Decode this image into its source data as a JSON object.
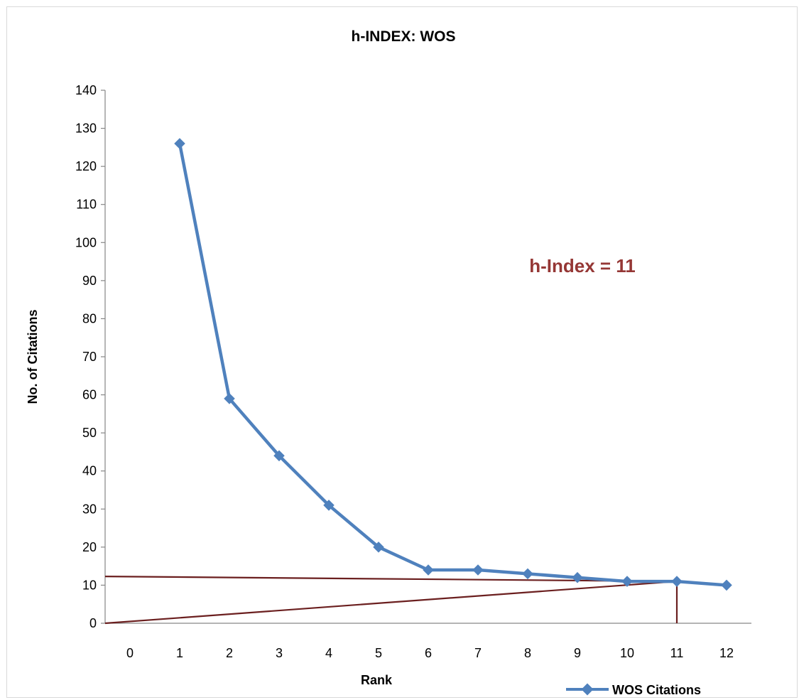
{
  "chart_data": {
    "type": "line",
    "title": "h-INDEX: WOS",
    "xlabel": "Rank",
    "ylabel": "No. of Citations",
    "categories": [
      "0",
      "1",
      "2",
      "3",
      "4",
      "5",
      "6",
      "7",
      "8",
      "9",
      "10",
      "11",
      "12"
    ],
    "yticks": [
      "0",
      "10",
      "20",
      "30",
      "40",
      "50",
      "60",
      "70",
      "80",
      "90",
      "100",
      "110",
      "120",
      "130",
      "140"
    ],
    "ylim": [
      0,
      140
    ],
    "series": [
      {
        "name": "WOS Citations",
        "color": "#4f81bd",
        "x": [
          1,
          2,
          3,
          4,
          5,
          6,
          7,
          8,
          9,
          10,
          11,
          12
        ],
        "values": [
          126,
          59,
          44,
          31,
          20,
          14,
          14,
          13,
          12,
          11,
          11,
          10
        ]
      }
    ],
    "reference_lines": {
      "color": "#6b1f1f",
      "lines": [
        {
          "from": [
            -0.5,
            12.3
          ],
          "to": [
            11,
            11
          ]
        },
        {
          "from": [
            -0.5,
            0
          ],
          "to": [
            11,
            11
          ]
        },
        {
          "from": [
            11,
            11
          ],
          "to": [
            11,
            0
          ]
        }
      ]
    },
    "annotation": {
      "text": "h-Index = 11",
      "color": "#953735"
    },
    "legend": {
      "position": "bottom-right"
    },
    "grid": false
  }
}
